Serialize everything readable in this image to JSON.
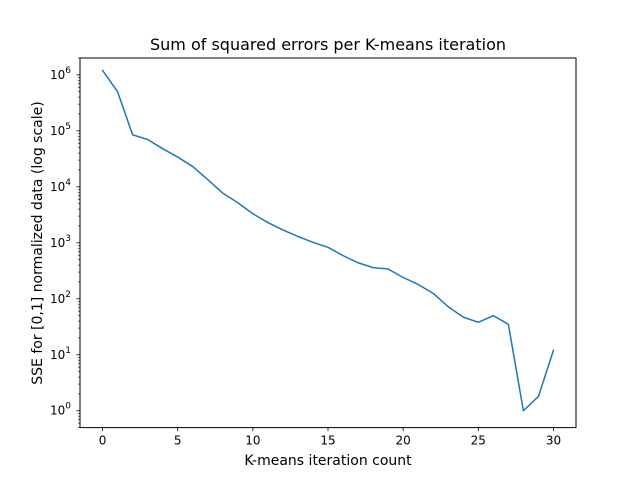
{
  "chart_data": {
    "type": "line",
    "title": "Sum of squared errors per K-means iteration",
    "xlabel": "K-means iteration count",
    "ylabel": "SSE for [0,1] normalized data (log scale)",
    "x_scale": "linear",
    "y_scale": "log",
    "xlim": [
      -1.5,
      31.5
    ],
    "ylim": [
      0.5,
      2000000
    ],
    "x_ticks": [
      0,
      5,
      10,
      15,
      20,
      25,
      30
    ],
    "y_ticks": [
      1,
      10,
      100,
      1000,
      10000,
      100000,
      1000000
    ],
    "y_tick_labels": [
      {
        "base": "10",
        "exp": "0"
      },
      {
        "base": "10",
        "exp": "1"
      },
      {
        "base": "10",
        "exp": "2"
      },
      {
        "base": "10",
        "exp": "3"
      },
      {
        "base": "10",
        "exp": "4"
      },
      {
        "base": "10",
        "exp": "5"
      },
      {
        "base": "10",
        "exp": "6"
      }
    ],
    "grid": false,
    "series": [
      {
        "color": "#1f77b4",
        "x": [
          0,
          1,
          2,
          3,
          4,
          5,
          6,
          7,
          8,
          9,
          10,
          11,
          12,
          13,
          14,
          15,
          16,
          17,
          18,
          19,
          20,
          21,
          22,
          23,
          24,
          25,
          26,
          27,
          28,
          29,
          30
        ],
        "y": [
          1200000,
          500000,
          85000,
          70000,
          48000,
          34000,
          23000,
          13500,
          7700,
          5200,
          3300,
          2300,
          1700,
          1300,
          1020,
          830,
          590,
          440,
          360,
          340,
          240,
          180,
          125,
          72,
          47,
          38,
          50,
          35,
          1,
          1.8,
          12
        ]
      }
    ]
  }
}
